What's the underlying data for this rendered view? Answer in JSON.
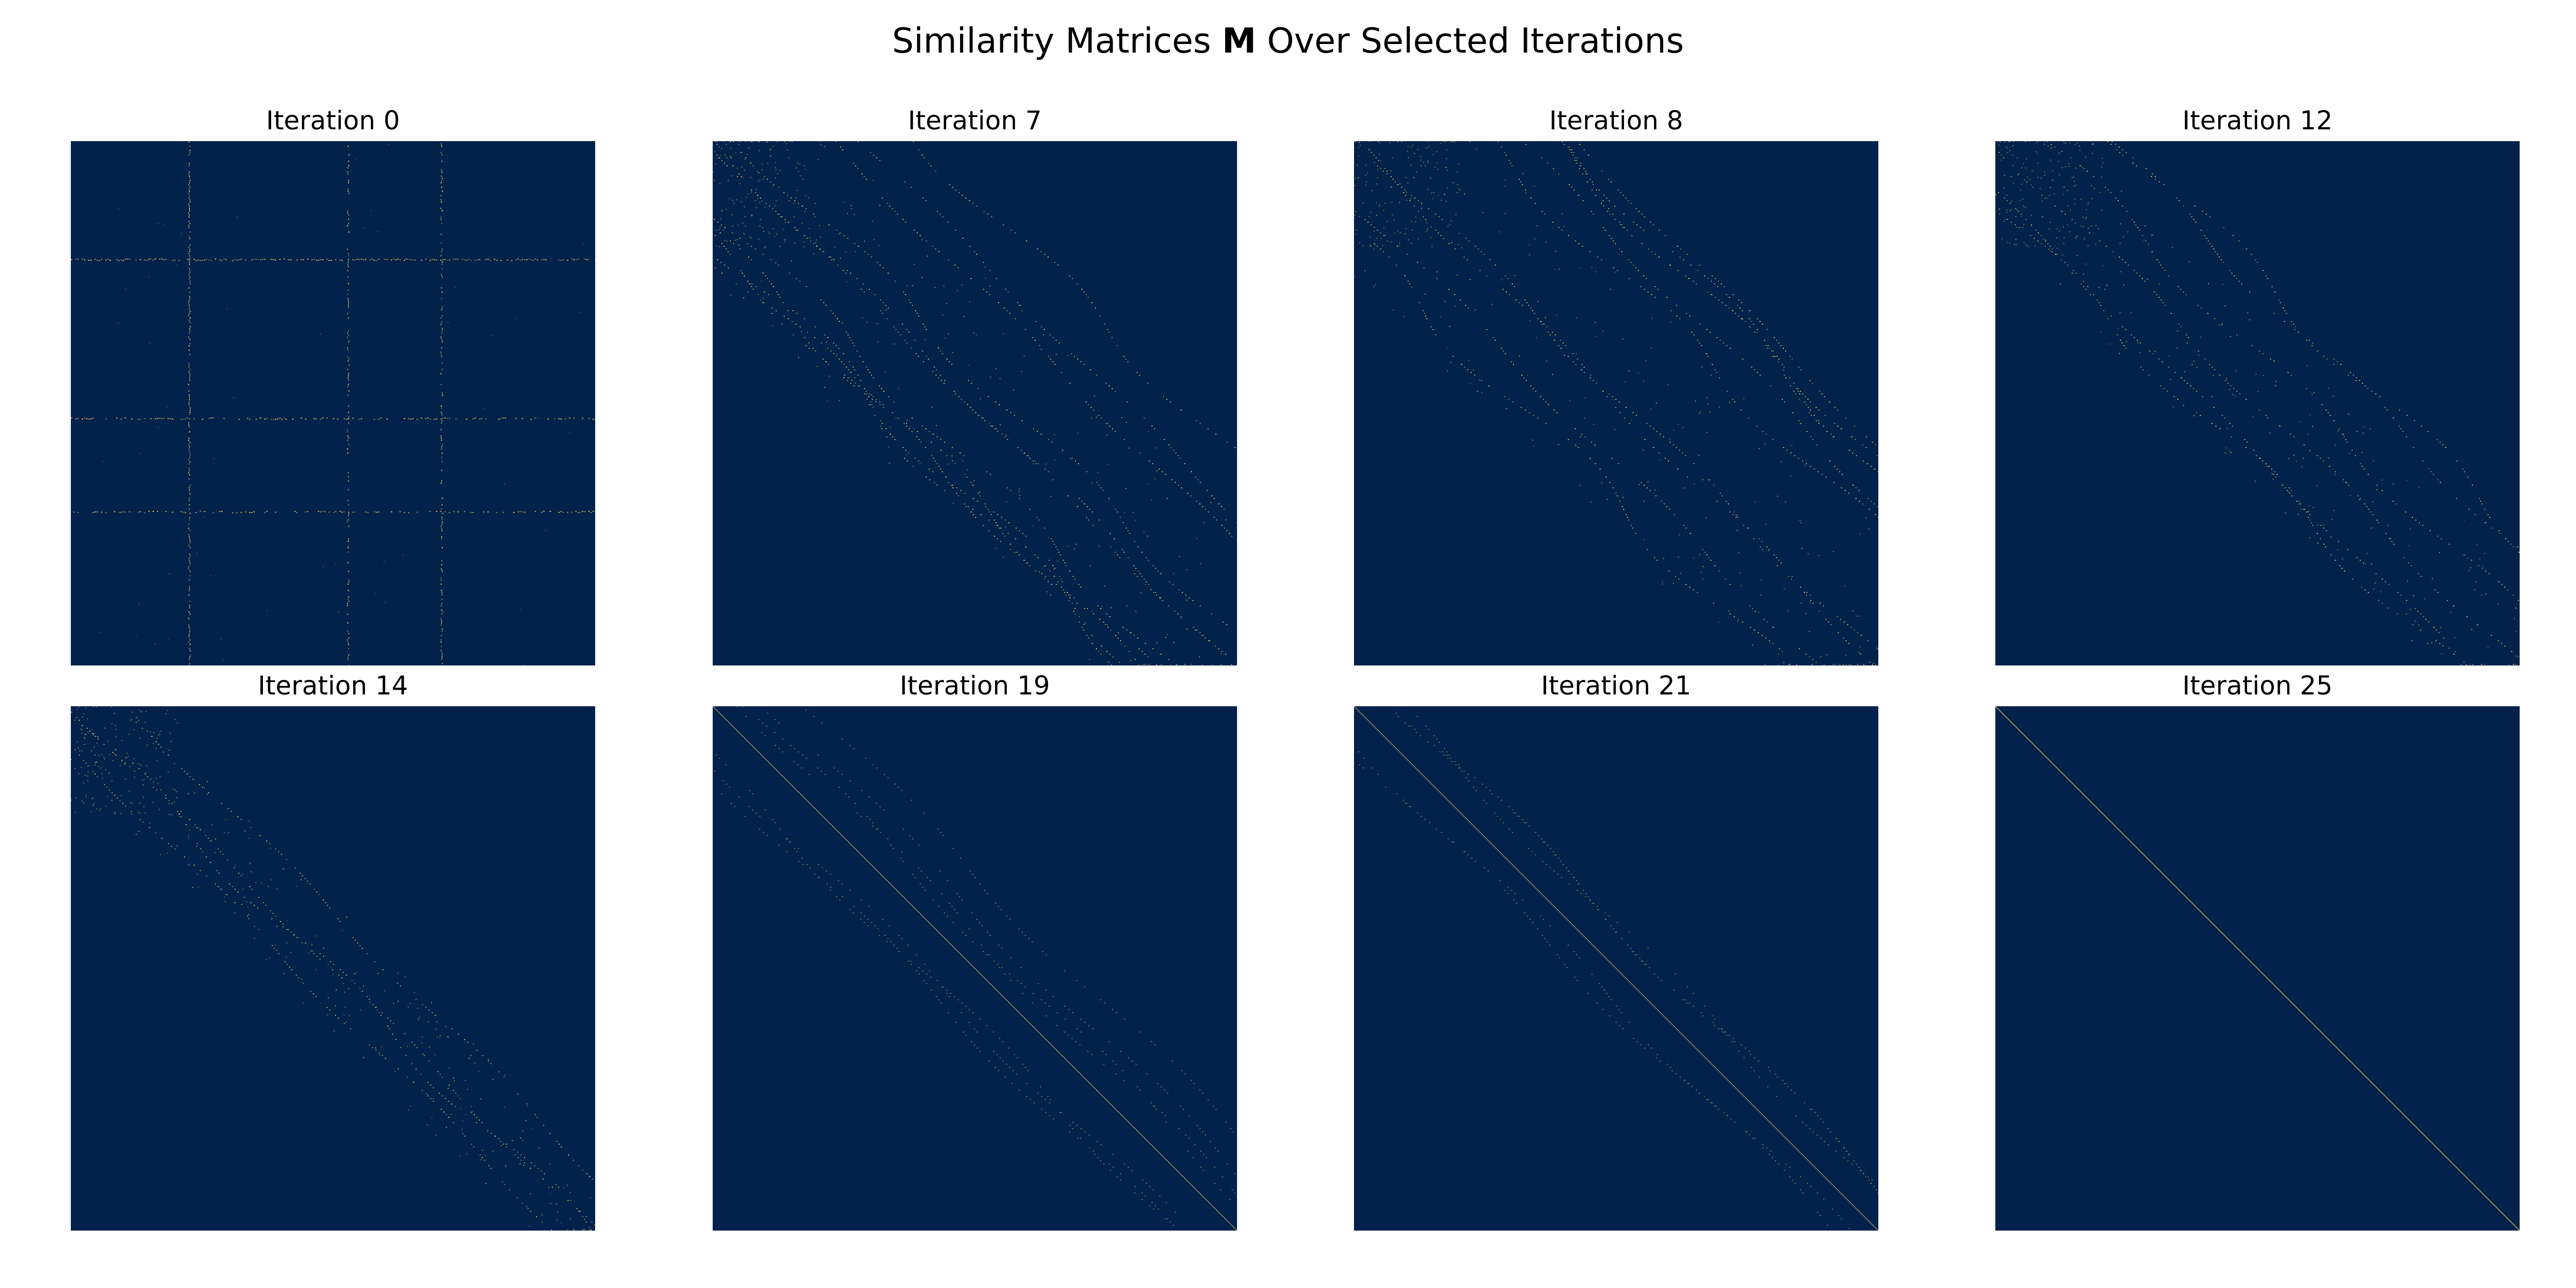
{
  "title": {
    "prefix": "Similarity Matrices ",
    "symbol": "M",
    "suffix": " Over Selected Iterations"
  },
  "colors": {
    "background": "#02214b",
    "mark": "#c8b45a"
  },
  "chart_data": [
    {
      "type": "heatmap",
      "title": "Iteration 0",
      "iteration": 0,
      "pattern": "grid",
      "axes": "off"
    },
    {
      "type": "heatmap",
      "title": "Iteration 7",
      "iteration": 7,
      "pattern": "bands",
      "axes": "off"
    },
    {
      "type": "heatmap",
      "title": "Iteration 8",
      "iteration": 8,
      "pattern": "bands",
      "axes": "off"
    },
    {
      "type": "heatmap",
      "title": "Iteration 12",
      "iteration": 12,
      "pattern": "bands",
      "axes": "off"
    },
    {
      "type": "heatmap",
      "title": "Iteration 14",
      "iteration": 14,
      "pattern": "bands",
      "axes": "off"
    },
    {
      "type": "heatmap",
      "title": "Iteration 19",
      "iteration": 19,
      "pattern": "diagonal",
      "axes": "off"
    },
    {
      "type": "heatmap",
      "title": "Iteration 21",
      "iteration": 21,
      "pattern": "diagonal",
      "axes": "off"
    },
    {
      "type": "heatmap",
      "title": "Iteration 25",
      "iteration": 25,
      "pattern": "identity",
      "axes": "off"
    }
  ]
}
